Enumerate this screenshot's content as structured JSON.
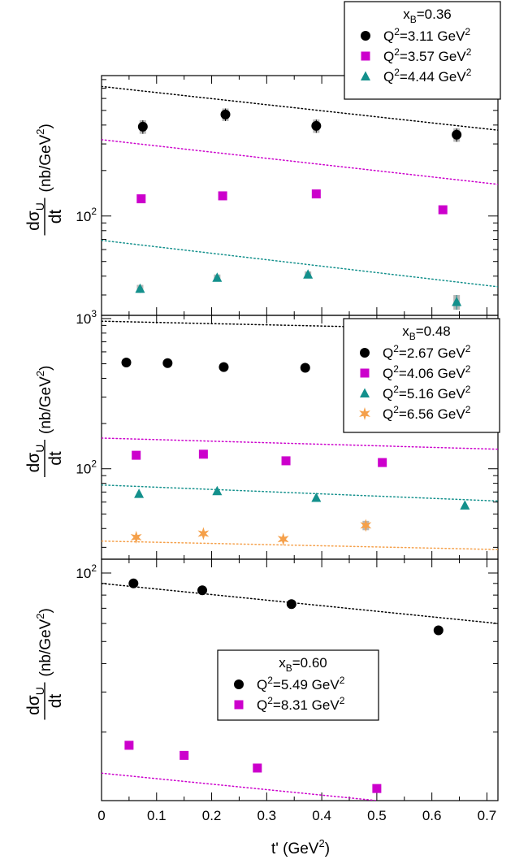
{
  "figure": {
    "xlabel": "t' (GeV²)",
    "xlabel_main": "t' (GeV",
    "xlabel_sup": "2",
    "xlabel_close": ")",
    "x_ticks": [
      "0",
      "0.1",
      "0.2",
      "0.3",
      "0.4",
      "0.5",
      "0.6",
      "0.7"
    ],
    "ylabel_num": "dσ",
    "ylabel_sub": "U",
    "ylabel_den": "dt",
    "ylabel_unit": "(nb/GeV",
    "ylabel_unit_sup": "2",
    "ylabel_unit_close": ")"
  },
  "colors": {
    "black": "#000000",
    "magenta": "#cc00cc",
    "teal": "#13908c",
    "orange": "#f5a04a"
  },
  "chart_data": [
    {
      "type": "scatter",
      "title": "",
      "xlim": [
        0,
        0.72
      ],
      "ylim": [
        22,
        850
      ],
      "yscale": "log",
      "y_tick_labels": [
        {
          "value": 100,
          "base": "10",
          "exp": "2"
        }
      ],
      "legend": {
        "title_base": "x",
        "title_sub": "B",
        "title_val": "=0.36",
        "placement": "top-right"
      },
      "series": [
        {
          "name": "Q²=3.11 GeV²",
          "label_base": "Q",
          "label_val": "=3.11 GeV",
          "marker": "circle",
          "color": "#000000",
          "x": [
            0.075,
            0.225,
            0.39,
            0.645
          ],
          "y": [
            390,
            470,
            395,
            345
          ],
          "yerr": [
            40,
            45,
            40,
            35
          ],
          "model": {
            "x": [
              0.0,
              0.72
            ],
            "y": [
              720,
              370
            ]
          }
        },
        {
          "name": "Q²=3.57 GeV²",
          "label_base": "Q",
          "label_val": "=3.57 GeV",
          "marker": "square",
          "color": "#cc00cc",
          "x": [
            0.072,
            0.22,
            0.39,
            0.62
          ],
          "y": [
            130,
            136,
            140,
            110
          ],
          "yerr": [],
          "model": {
            "x": [
              0.0,
              0.72
            ],
            "y": [
              320,
              162
            ]
          }
        },
        {
          "name": "Q²=4.44 GeV²",
          "label_base": "Q",
          "label_val": "=4.44 GeV",
          "marker": "triangle",
          "color": "#13908c",
          "x": [
            0.07,
            0.21,
            0.375,
            0.645
          ],
          "y": [
            33,
            39,
            41,
            27
          ],
          "yerr": [
            2,
            2,
            2,
            3
          ],
          "model": {
            "x": [
              0.0,
              0.72
            ],
            "y": [
              69,
              34
            ]
          }
        }
      ]
    },
    {
      "type": "scatter",
      "title": "",
      "xlim": [
        0,
        0.72
      ],
      "ylim": [
        25,
        1050
      ],
      "yscale": "log",
      "y_tick_labels": [
        {
          "value": 1000,
          "base": "10",
          "exp": "3"
        },
        {
          "value": 100,
          "base": "10",
          "exp": "2"
        }
      ],
      "legend": {
        "title_base": "x",
        "title_sub": "B",
        "title_val": "=0.48",
        "placement": "top-right"
      },
      "series": [
        {
          "name": "Q²=2.67 GeV²",
          "label_base": "Q",
          "label_val": "=2.67 GeV",
          "marker": "circle",
          "color": "#000000",
          "x": [
            0.045,
            0.12,
            0.222,
            0.37
          ],
          "y": [
            510,
            505,
            475,
            470
          ],
          "yerr": [],
          "model": {
            "x": [
              0.0,
              0.72
            ],
            "y": [
              960,
              840
            ]
          }
        },
        {
          "name": "Q²=4.06 GeV²",
          "label_base": "Q",
          "label_val": "=4.06 GeV",
          "marker": "square",
          "color": "#cc00cc",
          "x": [
            0.063,
            0.185,
            0.335,
            0.51
          ],
          "y": [
            123,
            125,
            113,
            110
          ],
          "yerr": [],
          "model": {
            "x": [
              0.0,
              0.72
            ],
            "y": [
              160,
              135
            ]
          }
        },
        {
          "name": "Q²=5.16 GeV²",
          "label_base": "Q",
          "label_val": "=5.16 GeV",
          "marker": "triangle",
          "color": "#13908c",
          "x": [
            0.068,
            0.21,
            0.39,
            0.66
          ],
          "y": [
            68,
            71,
            64,
            57
          ],
          "yerr": [],
          "model": {
            "x": [
              0.0,
              0.72
            ],
            "y": [
              78,
              61
            ]
          }
        },
        {
          "name": "Q²=6.56 GeV²",
          "label_base": "Q",
          "label_val": "=6.56 GeV",
          "marker": "star",
          "color": "#f5a04a",
          "x": [
            0.063,
            0.185,
            0.33,
            0.48
          ],
          "y": [
            35,
            37,
            34,
            42
          ],
          "yerr": [
            0,
            0,
            0,
            3
          ],
          "model": {
            "x": [
              0.0,
              0.72
            ],
            "y": [
              33,
              29
            ]
          }
        }
      ]
    },
    {
      "type": "scatter",
      "title": "",
      "xlim": [
        0,
        0.72
      ],
      "ylim": [
        10,
        115
      ],
      "yscale": "log",
      "y_tick_labels": [
        {
          "value": 100,
          "base": "10",
          "exp": "2"
        }
      ],
      "legend": {
        "title_base": "x",
        "title_sub": "B",
        "title_val": "=0.60",
        "placement": "center-right"
      },
      "series": [
        {
          "name": "Q²=5.49 GeV²",
          "label_base": "Q",
          "label_val": "=5.49 GeV",
          "marker": "circle",
          "color": "#000000",
          "x": [
            0.058,
            0.183,
            0.345,
            0.612
          ],
          "y": [
            90,
            84,
            73,
            56
          ],
          "yerr": [],
          "model": {
            "x": [
              0.0,
              0.72
            ],
            "y": [
              90,
              60
            ]
          }
        },
        {
          "name": "Q²=8.31 GeV²",
          "label_base": "Q",
          "label_val": "=8.31 GeV",
          "marker": "square",
          "color": "#cc00cc",
          "x": [
            0.05,
            0.15,
            0.283,
            0.5
          ],
          "y": [
            17.5,
            15.8,
            13.9,
            11.3
          ],
          "yerr": [],
          "model": {
            "x": [
              0.0,
              0.5
            ],
            "y": [
              13.2,
              10
            ]
          }
        }
      ]
    }
  ]
}
